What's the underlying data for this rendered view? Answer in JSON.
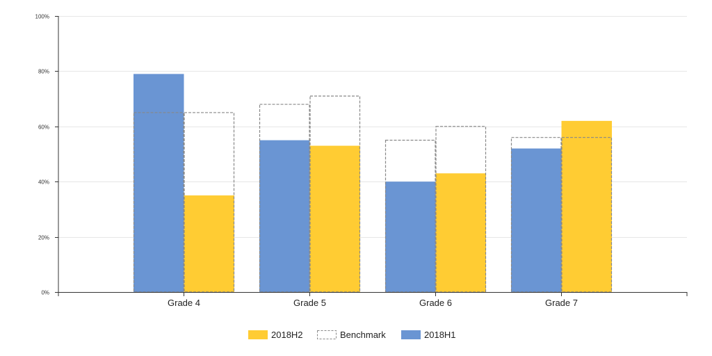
{
  "chart_data": {
    "type": "bar",
    "categories": [
      "Grade 4",
      "Grade 5",
      "Grade 6",
      "Grade 7"
    ],
    "series": [
      {
        "name": "2018H1",
        "values": [
          79,
          55,
          40,
          52
        ],
        "color": "#6a95d3"
      },
      {
        "name": "2018H2",
        "values": [
          35,
          53,
          43,
          62
        ],
        "color": "#ffcc33"
      }
    ],
    "benchmark": {
      "name": "Benchmark",
      "values_2018H1": [
        65,
        68,
        55,
        56
      ],
      "values_2018H2": [
        65,
        71,
        60,
        56
      ],
      "style": "dashed-outline",
      "stroke_color": "#888888"
    },
    "ylim": [
      0,
      100
    ],
    "yticks": [
      "0%",
      "20%",
      "40%",
      "60%",
      "80%",
      "100%"
    ],
    "ytick_values": [
      0,
      20,
      40,
      60,
      80,
      100
    ],
    "grid": true,
    "legend": {
      "position": "bottom",
      "order": [
        "2018H2",
        "Benchmark",
        "2018H1"
      ]
    },
    "title": "",
    "xlabel": "",
    "ylabel": ""
  }
}
